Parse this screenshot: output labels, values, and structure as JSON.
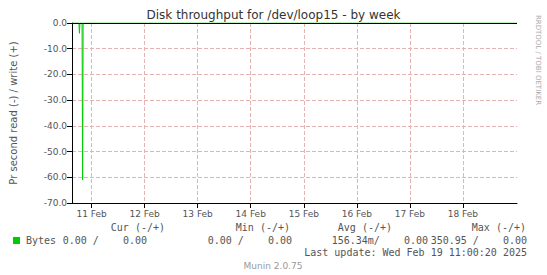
{
  "chart_data": {
    "type": "line",
    "title": "Disk throughput for /dev/loop15 - by week",
    "y_label": "Pr second read (-) / write (+)",
    "x": [
      11.13,
      11.26,
      11.27,
      11.28,
      11.32,
      11.33,
      11.34,
      19.52
    ],
    "series": [
      {
        "name": "Bytes",
        "color": "#00cc00",
        "values": [
          0,
          0,
          -4,
          0,
          0,
          -61,
          0,
          0
        ]
      }
    ],
    "xlim": [
      11.13,
      19.52
    ],
    "xticks": [
      {
        "value": 11.5,
        "label": "11 Feb"
      },
      {
        "value": 12.5,
        "label": "12 Feb"
      },
      {
        "value": 13.5,
        "label": "13 Feb"
      },
      {
        "value": 14.5,
        "label": "14 Feb"
      },
      {
        "value": 15.5,
        "label": "15 Feb"
      },
      {
        "value": 16.5,
        "label": "16 Feb"
      },
      {
        "value": 17.5,
        "label": "17 Feb"
      },
      {
        "value": 18.5,
        "label": "18 Feb"
      }
    ],
    "ylim": [
      -70,
      0
    ],
    "yticks": [
      {
        "value": 0,
        "label": "0.0"
      },
      {
        "value": -10,
        "label": "-10.0"
      },
      {
        "value": -20,
        "label": "-20.0"
      },
      {
        "value": -30,
        "label": "-30.0"
      },
      {
        "value": -40,
        "label": "-40.0"
      },
      {
        "value": -50,
        "label": "-50.0"
      },
      {
        "value": -60,
        "label": "-60.0"
      },
      {
        "value": -70,
        "label": "-70.0"
      }
    ],
    "grid": true,
    "stats": {
      "columns": [
        "Cur (-/+)",
        "Min (-/+)",
        "Avg (-/+)",
        "Max (-/+)"
      ],
      "rows": [
        {
          "name": "Bytes",
          "cells": [
            "0.00 /    0.00",
            "0.00 /    0.00",
            "156.34m/    0.00",
            "350.95 /    0.00"
          ]
        }
      ]
    },
    "footer": "Last update: Wed Feb 19 11:00:20 2025",
    "credit": "Munin 2.0.75",
    "watermark": "RRDTOOL / TOBI OETIKER"
  }
}
